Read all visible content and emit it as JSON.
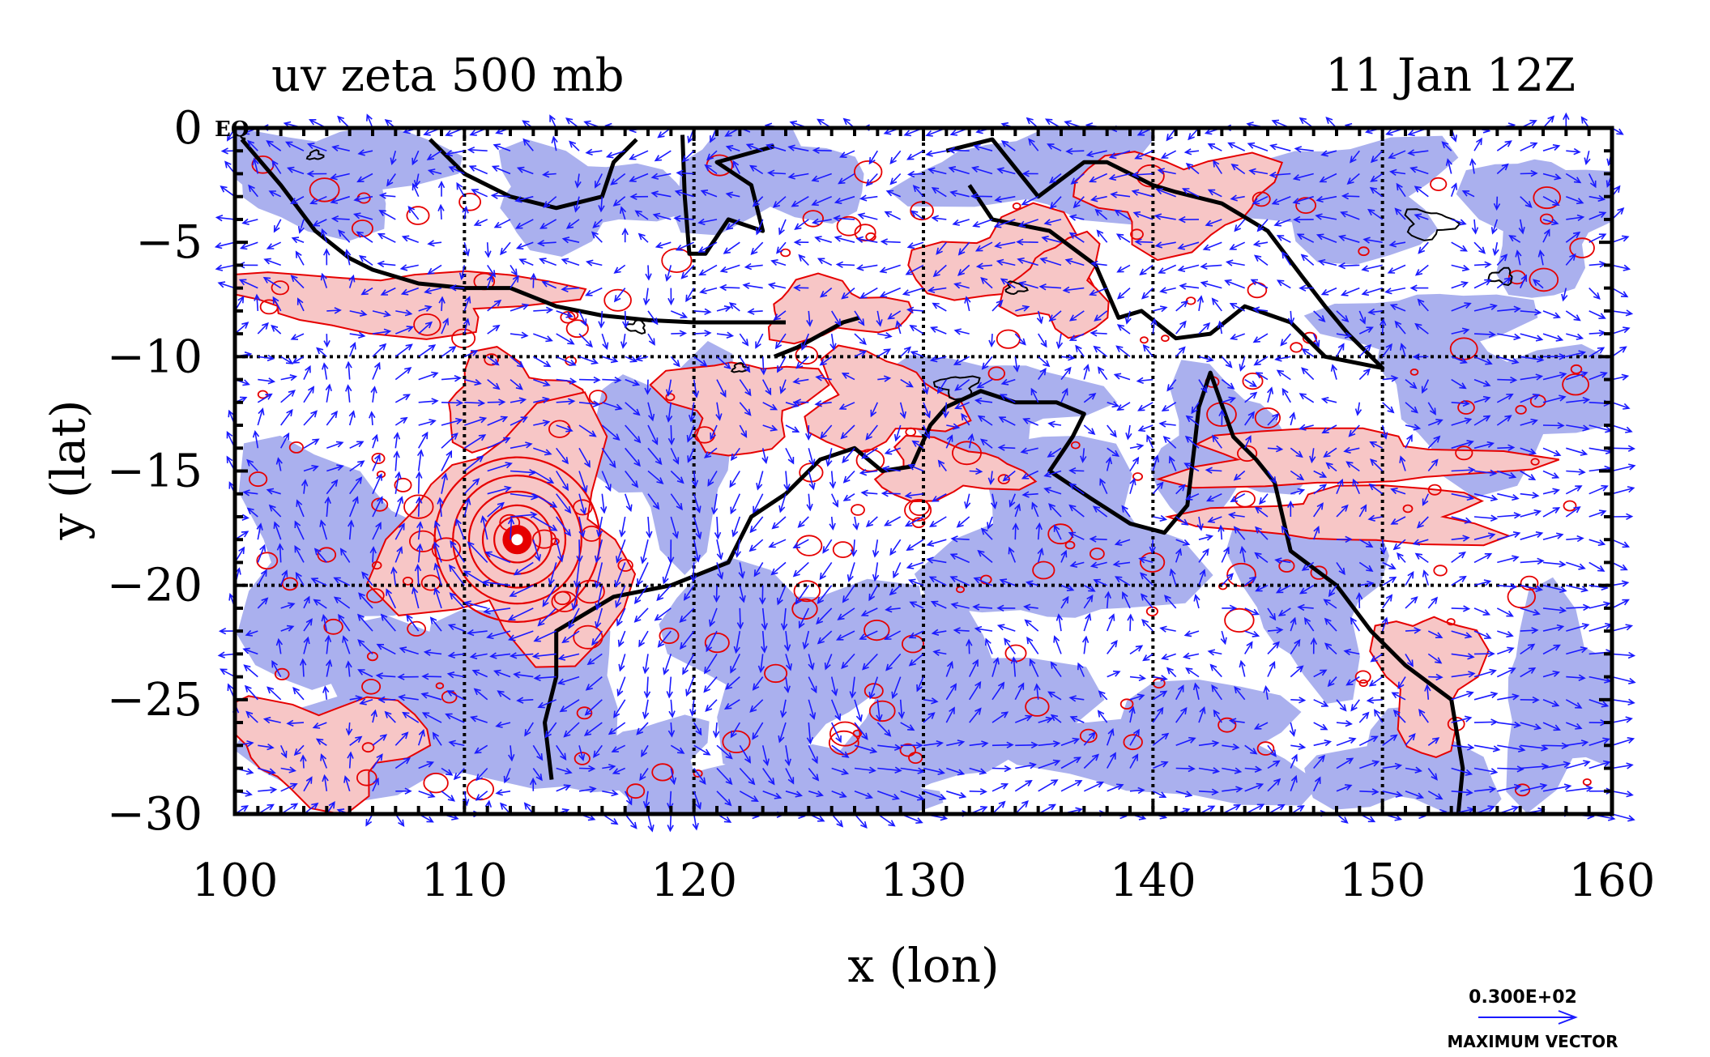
{
  "header": {
    "title_left": "uv zeta 500 mb",
    "title_right": "11 Jan 12Z"
  },
  "axes": {
    "xlabel": "x (lon)",
    "ylabel": "y (lat)",
    "xlim": [
      100,
      160
    ],
    "ylim": [
      -30,
      0
    ],
    "xticks": [
      "100",
      "110",
      "120",
      "130",
      "140",
      "150",
      "160"
    ],
    "yticks": [
      "0",
      "−5",
      "−10",
      "−15",
      "−20",
      "−25",
      "−30"
    ],
    "corner_label": "EQ",
    "grid_lon": [
      110,
      120,
      130,
      140,
      150
    ],
    "grid_lat": [
      -10,
      -20
    ]
  },
  "legend": {
    "value": "0.300E+02",
    "label": "MAXIMUM VECTOR"
  },
  "colors": {
    "vector": "#1a1aff",
    "vorticity_positive_fill": "#f7c6c6",
    "vorticity_positive_line": "#e60000",
    "vorticity_negative_fill": "#aab0ee",
    "coastline": "#000000",
    "frame": "#000000",
    "background": "#ffffff"
  },
  "features": {
    "cyclone_center": {
      "lon": 112.3,
      "lat": -18.0
    }
  }
}
